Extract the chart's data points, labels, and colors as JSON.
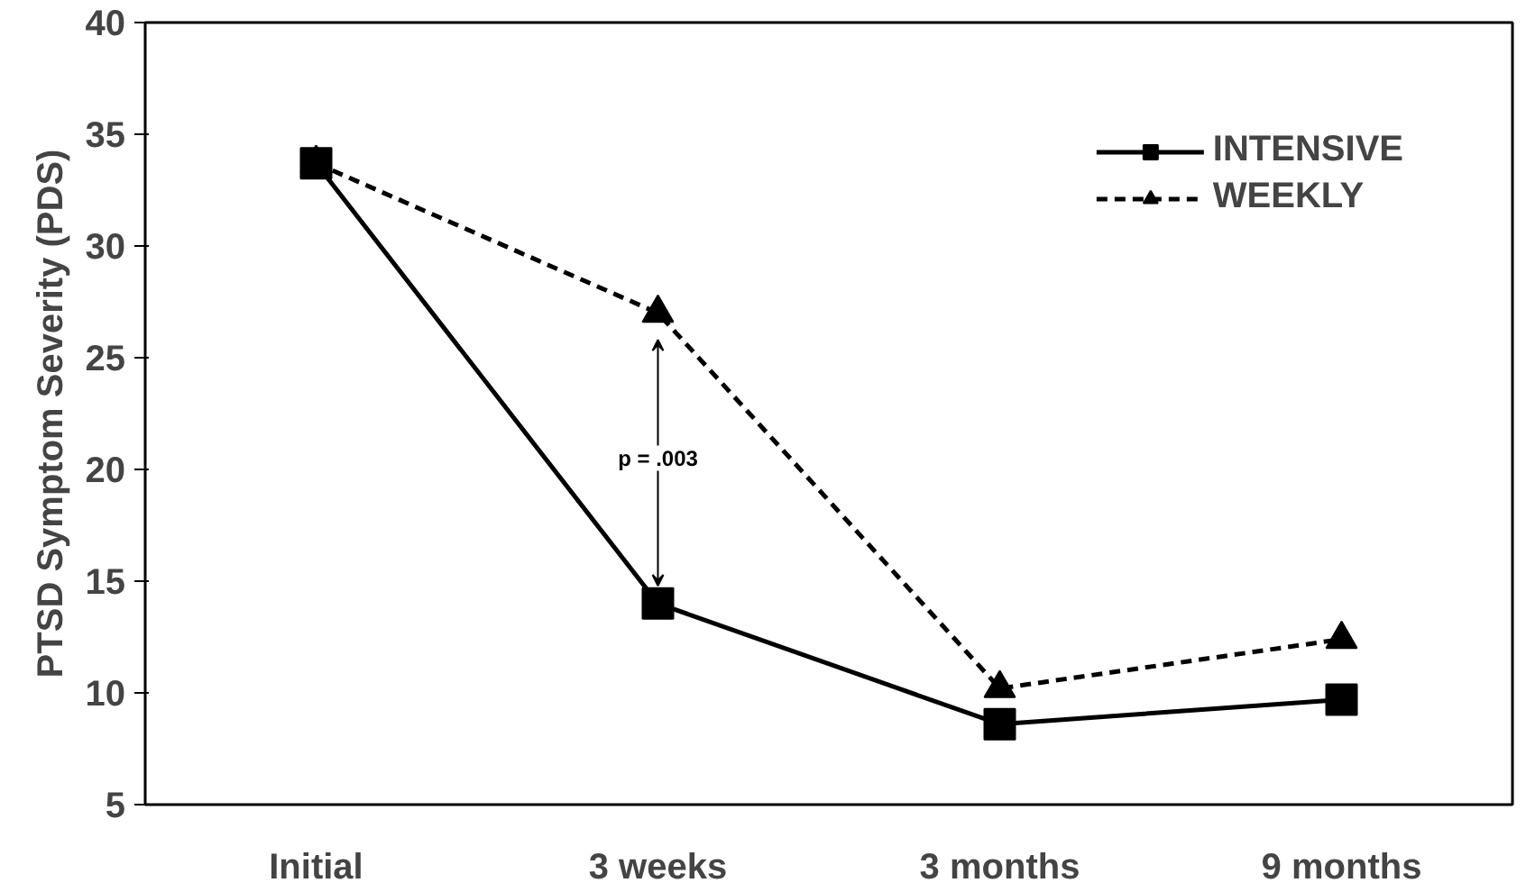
{
  "chart_data": {
    "type": "line",
    "ylabel": "PTSD Symptom Severity (PDS)",
    "categories": [
      "Initial",
      "3 weeks",
      "3 months",
      "9 months"
    ],
    "ylim": [
      5,
      40
    ],
    "yticks": [
      5,
      10,
      15,
      20,
      25,
      30,
      35,
      40
    ],
    "grid": false,
    "legend": "top right",
    "series": [
      {
        "name": "INTENSIVE",
        "color": "#000000",
        "values": [
          33.7,
          14.0,
          8.6,
          9.7
        ],
        "marker": "square",
        "line_style": "solid"
      },
      {
        "name": "WEEKLY",
        "color": "#000000",
        "values": [
          33.7,
          27.0,
          10.2,
          12.4
        ],
        "marker": "triangle",
        "line_style": "dashed"
      }
    ],
    "annotations": [
      "p = .003"
    ]
  }
}
